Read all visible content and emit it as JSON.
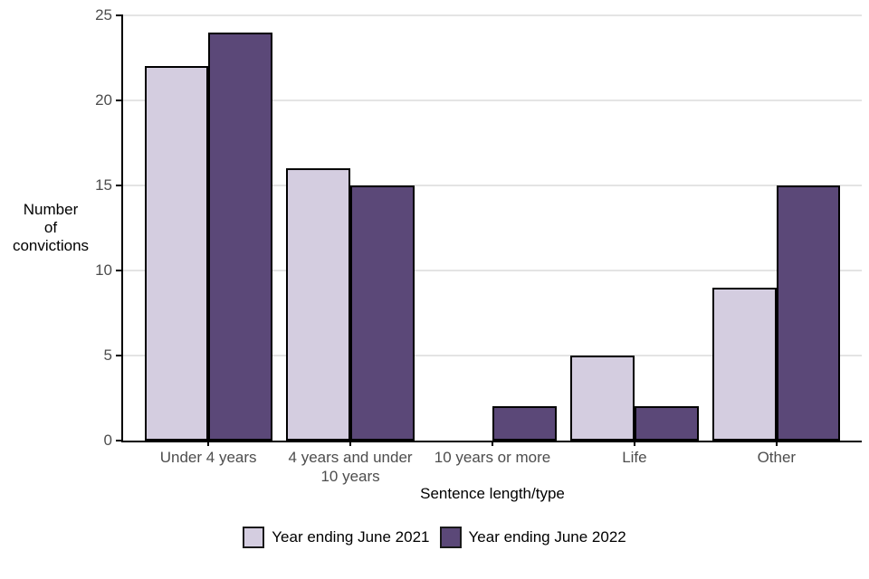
{
  "chart_data": {
    "type": "bar",
    "title": "",
    "categories": [
      "Under 4 years",
      "4 years and under 10 years",
      "10 years or more",
      "Life",
      "Other"
    ],
    "series": [
      {
        "name": "Year ending June 2021",
        "color": "#d4cde0",
        "values": [
          22,
          16,
          0,
          5,
          9
        ]
      },
      {
        "name": "Year ending June 2022",
        "color": "#5b4878",
        "values": [
          24,
          15,
          2,
          2,
          15
        ]
      }
    ],
    "xlabel": "Sentence length/type",
    "ylabel": "Number\nof\nconvictions",
    "ylim": [
      0,
      25
    ],
    "yticks": [
      0,
      5,
      10,
      15,
      20,
      25
    ],
    "grid": "horizontal",
    "legend_position": "bottom",
    "colors": {
      "bar_outline": "#000000",
      "axis_line": "#000000",
      "gridline": "#e4e4e4",
      "tick_text": "#4d4d4d",
      "title_text": "#000000",
      "background": "#ffffff"
    }
  }
}
